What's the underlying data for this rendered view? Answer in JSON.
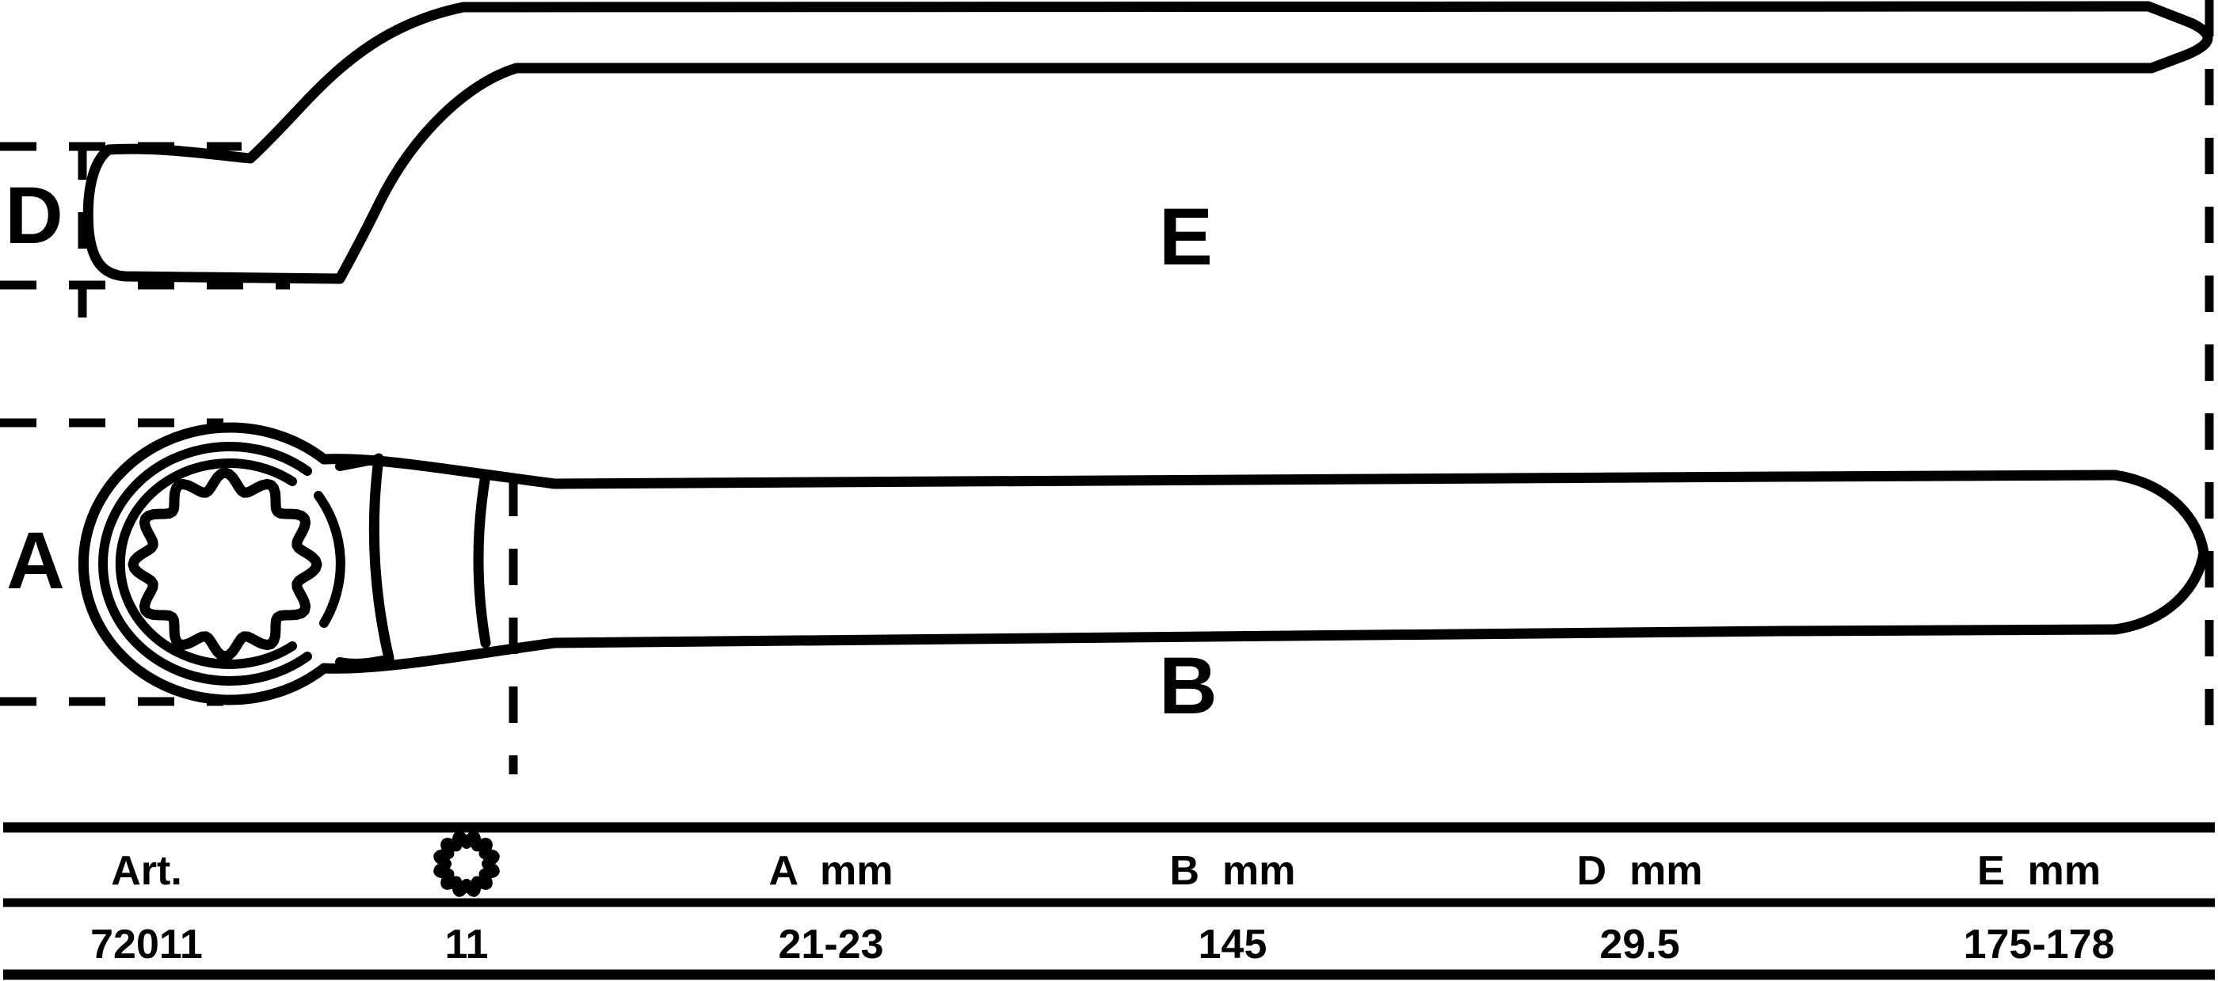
{
  "diagram": {
    "labels": {
      "head_depth": "D",
      "overall_length_side": "E",
      "head_width": "A",
      "handle_length": "B"
    }
  },
  "table": {
    "columns": [
      {
        "id": "art",
        "header": "Art.",
        "value": "72011"
      },
      {
        "id": "size",
        "header": "",
        "icon": "spline-12pt-icon",
        "value": "11"
      },
      {
        "id": "a",
        "header": "A  mm",
        "value": "21-23"
      },
      {
        "id": "b",
        "header": "B  mm",
        "value": "145"
      },
      {
        "id": "d",
        "header": "D  mm",
        "value": "29.5"
      },
      {
        "id": "e",
        "header": "E  mm",
        "value": "175-178"
      }
    ]
  },
  "colors": {
    "ink": "#000000",
    "background": "#ffffff"
  }
}
